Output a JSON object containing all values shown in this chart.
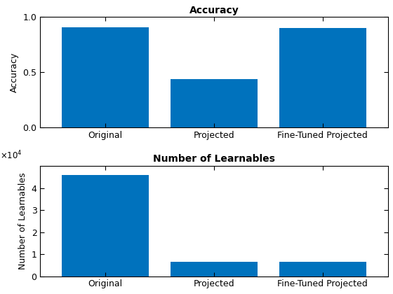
{
  "accuracy": {
    "categories": [
      "Original",
      "Projected",
      "Fine-Tuned Projected"
    ],
    "values": [
      0.906,
      0.434,
      0.898
    ],
    "title": "Accuracy",
    "ylabel": "Accuracy",
    "ylim": [
      0,
      1
    ],
    "yticks": [
      0,
      0.5,
      1
    ],
    "bar_color": "#0072BD"
  },
  "learnables": {
    "categories": [
      "Original",
      "Projected",
      "Fine-Tuned Projected"
    ],
    "values": [
      46000,
      6700,
      6700
    ],
    "title": "Number of Learnables",
    "ylabel": "Number of Learnables",
    "ylim": [
      0,
      50000
    ],
    "yticks": [
      0,
      10000,
      20000,
      30000,
      40000
    ],
    "bar_color": "#0072BD"
  },
  "fig_width": 5.6,
  "fig_height": 4.2,
  "dpi": 100
}
